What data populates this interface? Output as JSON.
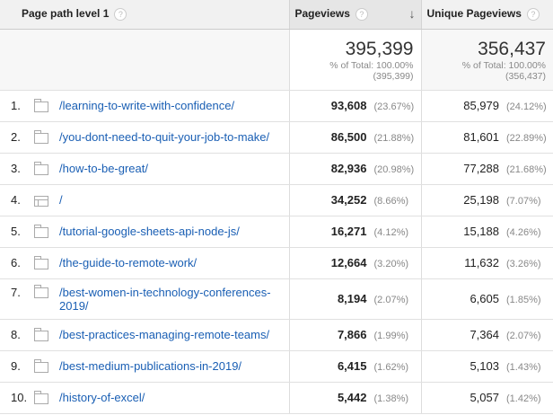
{
  "headers": {
    "dimension": "Page path level 1",
    "pageviews": "Pageviews",
    "unique": "Unique Pageviews",
    "help": "?",
    "sort_icon": "arrow-down"
  },
  "summary": {
    "pageviews": "395,399",
    "pageviews_pct": "% of Total: 100.00%",
    "pageviews_total": "(395,399)",
    "unique": "356,437",
    "unique_pct": "% of Total: 100.00%",
    "unique_total": "(356,437)"
  },
  "rows": [
    {
      "idx": "1.",
      "icon": "folder",
      "path": "/learning-to-write-with-confidence/",
      "pv": "93,608",
      "pvp": "(23.67%)",
      "u": "85,979",
      "up": "(24.12%)"
    },
    {
      "idx": "2.",
      "icon": "folder",
      "path": "/you-dont-need-to-quit-your-job-to-make/",
      "pv": "86,500",
      "pvp": "(21.88%)",
      "u": "81,601",
      "up": "(22.89%)"
    },
    {
      "idx": "3.",
      "icon": "folder",
      "path": "/how-to-be-great/",
      "pv": "82,936",
      "pvp": "(20.98%)",
      "u": "77,288",
      "up": "(21.68%)"
    },
    {
      "idx": "4.",
      "icon": "page",
      "path": "/",
      "pv": "34,252",
      "pvp": "(8.66%)",
      "u": "25,198",
      "up": "(7.07%)"
    },
    {
      "idx": "5.",
      "icon": "folder",
      "path": "/tutorial-google-sheets-api-node-js/",
      "pv": "16,271",
      "pvp": "(4.12%)",
      "u": "15,188",
      "up": "(4.26%)"
    },
    {
      "idx": "6.",
      "icon": "folder",
      "path": "/the-guide-to-remote-work/",
      "pv": "12,664",
      "pvp": "(3.20%)",
      "u": "11,632",
      "up": "(3.26%)"
    },
    {
      "idx": "7.",
      "icon": "folder",
      "path": "/best-women-in-technology-conferences-2019/",
      "pv": "8,194",
      "pvp": "(2.07%)",
      "u": "6,605",
      "up": "(1.85%)"
    },
    {
      "idx": "8.",
      "icon": "folder",
      "path": "/best-practices-managing-remote-teams/",
      "pv": "7,866",
      "pvp": "(1.99%)",
      "u": "7,364",
      "up": "(2.07%)"
    },
    {
      "idx": "9.",
      "icon": "folder",
      "path": "/best-medium-publications-in-2019/",
      "pv": "6,415",
      "pvp": "(1.62%)",
      "u": "5,103",
      "up": "(1.43%)"
    },
    {
      "idx": "10.",
      "icon": "folder",
      "path": "/history-of-excel/",
      "pv": "5,442",
      "pvp": "(1.38%)",
      "u": "5,057",
      "up": "(1.42%)"
    }
  ]
}
